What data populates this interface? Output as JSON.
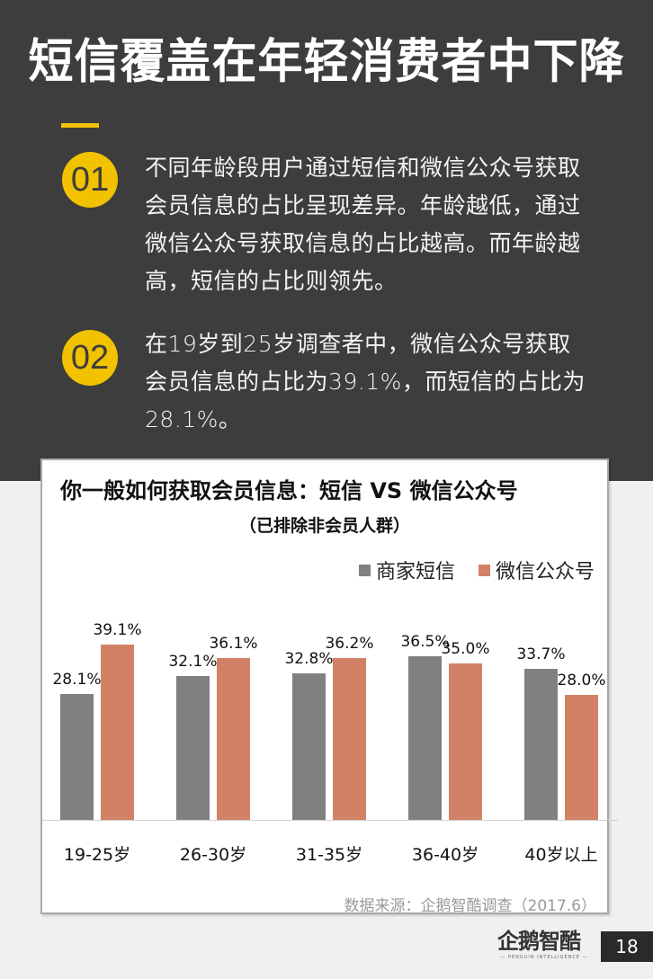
{
  "header": {
    "title": "短信覆盖在年轻消费者中下降"
  },
  "points": [
    {
      "number": "01",
      "text": "不同年龄段用户通过短信和微信公众号获取会员信息的占比呈现差异。年龄越低，通过微信公众号获取信息的占比越高。而年龄越高，短信的占比则领先。",
      "lines": [
        "不同年龄段用户通过短信和微信公众号获取",
        "会员信息的占比呈现差异。年龄越低，通过",
        "微信公众号获取信息的占比越高。而年龄越",
        "高，短信的占比则领先。"
      ]
    },
    {
      "number": "02",
      "text": "在19岁到25岁调查者中，微信公众号获取会员信息的占比为39.1%，而短信的占比为28.1%。",
      "lines": [
        "在19岁到25岁调查者中，微信公众号获取",
        "会员信息的占比为39.1%，而短信的占比为",
        "28.1%。"
      ]
    }
  ],
  "colors": {
    "background_dark": "#3d3d3d",
    "accent_yellow": "#f2c200",
    "series_sms": "#808080",
    "series_wechat": "#d38166"
  },
  "chart_data": {
    "type": "bar",
    "title": "你一般如何获取会员信息：短信 VS 微信公众号",
    "subtitle": "（已排除非会员人群）",
    "xlabel": "",
    "ylabel": "",
    "ylim": [
      0,
      42
    ],
    "grid": false,
    "legend_position": "top-right",
    "categories": [
      "19-25岁",
      "26-30岁",
      "31-35岁",
      "36-40岁",
      "40岁以上"
    ],
    "series": [
      {
        "name": "商家短信",
        "color": "#808080",
        "values": [
          28.1,
          32.1,
          32.8,
          36.5,
          33.7
        ],
        "labels": [
          "28.1%",
          "32.1%",
          "32.8%",
          "36.5%",
          "33.7%"
        ]
      },
      {
        "name": "微信公众号",
        "color": "#d38166",
        "values": [
          39.1,
          36.1,
          36.2,
          35.0,
          28.0
        ],
        "labels": [
          "39.1%",
          "36.1%",
          "36.2%",
          "35.0%",
          "28.0%"
        ]
      }
    ],
    "source": "数据来源：企鹅智酷调查（2017.6）"
  },
  "footer": {
    "logo_text": "企鹅智酷",
    "logo_subtext": "— PENGUIN INTELLIGENCE —",
    "page_number": "18"
  }
}
